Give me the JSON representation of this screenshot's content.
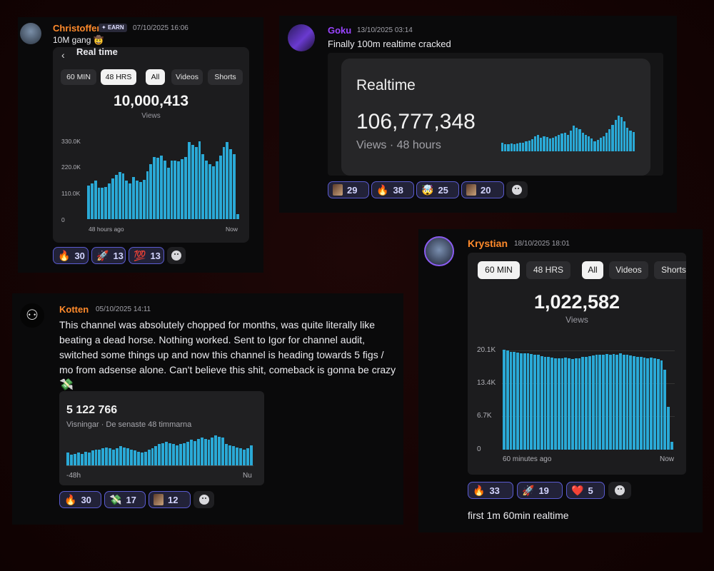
{
  "post1": {
    "username": "Christoffer",
    "badge": "EARN",
    "timestamp": "07/10/2025 16:06",
    "message": "10M gang",
    "screen_title": "Real time",
    "tabs": [
      "60 MIN",
      "48 HRS"
    ],
    "filters": [
      "All",
      "Videos",
      "Shorts"
    ],
    "views_value": "10,000,413",
    "views_label": "Views",
    "y_ticks": [
      "330.0K",
      "220.0K",
      "110.0K",
      "0"
    ],
    "x_start": "48 hours ago",
    "x_end": "Now",
    "reactions": [
      {
        "emoji": "🔥",
        "count": "30"
      },
      {
        "emoji": "🚀",
        "count": "13"
      },
      {
        "emoji": "💯",
        "count": "13"
      }
    ],
    "chart_data": {
      "type": "bar",
      "ylim": [
        0,
        330000
      ],
      "values": [
        140000,
        150000,
        160000,
        130000,
        130000,
        135000,
        150000,
        170000,
        185000,
        195000,
        190000,
        160000,
        150000,
        175000,
        160000,
        155000,
        165000,
        200000,
        230000,
        260000,
        255000,
        265000,
        245000,
        215000,
        245000,
        245000,
        240000,
        250000,
        260000,
        320000,
        310000,
        300000,
        325000,
        270000,
        245000,
        230000,
        220000,
        240000,
        265000,
        300000,
        320000,
        290000,
        270000,
        20000
      ]
    }
  },
  "post2": {
    "username": "Goku",
    "timestamp": "13/10/2025 03:14",
    "message": "Finally 100m realtime cracked",
    "screen_title": "Realtime",
    "views_value": "106,777,348",
    "views_label": "Views · 48 hours",
    "reactions": [
      {
        "emoji": "thumb",
        "count": "29"
      },
      {
        "emoji": "🔥",
        "count": "38"
      },
      {
        "emoji": "🤯",
        "count": "25"
      },
      {
        "emoji": "thumb",
        "count": "20"
      }
    ],
    "chart_data": {
      "type": "bar",
      "values": [
        12,
        10,
        10,
        11,
        10,
        11,
        12,
        12,
        13,
        14,
        16,
        20,
        22,
        18,
        20,
        19,
        17,
        18,
        20,
        22,
        24,
        25,
        22,
        28,
        35,
        32,
        30,
        25,
        22,
        20,
        17,
        13,
        15,
        18,
        20,
        25,
        30,
        36,
        42,
        48,
        46,
        40,
        32,
        28,
        26
      ]
    }
  },
  "post3": {
    "username": "Kotten",
    "timestamp": "05/10/2025 14:11",
    "message": "This channel was absolutely chopped for months, was quite literally like beating a dead horse. Nothing worked. Sent to Igor for channel audit, switched some things up and now this channel is heading towards 5 figs / mo from adsense alone. Can't believe this shit, comeback is gonna be crazy",
    "views_value": "5 122 766",
    "views_label": "Visningar · De senaste 48 timmarna",
    "x_start": "-48h",
    "x_end": "Nu",
    "reactions": [
      {
        "emoji": "🔥",
        "count": "30"
      },
      {
        "emoji": "💸",
        "count": "17"
      },
      {
        "emoji": "thumb",
        "count": "12"
      }
    ],
    "chart_data": {
      "type": "bar",
      "values": [
        12,
        10,
        11,
        12,
        11,
        13,
        12,
        14,
        15,
        15,
        16,
        17,
        16,
        15,
        16,
        18,
        17,
        16,
        15,
        14,
        13,
        12,
        13,
        15,
        16,
        18,
        20,
        21,
        22,
        21,
        20,
        19,
        20,
        21,
        22,
        24,
        23,
        25,
        26,
        25,
        24,
        26,
        28,
        27,
        26,
        20,
        19,
        18,
        17,
        16,
        15,
        16,
        19
      ]
    }
  },
  "post4": {
    "username": "Krystian",
    "timestamp": "18/10/2025 18:01",
    "tabs": [
      "60 MIN",
      "48 HRS"
    ],
    "filters": [
      "All",
      "Videos",
      "Shorts"
    ],
    "views_value": "1,022,582",
    "views_label": "Views",
    "y_ticks": [
      "20.1K",
      "13.4K",
      "6.7K",
      "0"
    ],
    "x_start": "60 minutes ago",
    "x_end": "Now",
    "reactions": [
      {
        "emoji": "🔥",
        "count": "33"
      },
      {
        "emoji": "🚀",
        "count": "19"
      },
      {
        "emoji": "❤️",
        "count": "5"
      }
    ],
    "caption": "first 1m 60min realtime",
    "chart_data": {
      "type": "bar",
      "ylim": [
        0,
        20100
      ],
      "values": [
        20000,
        19800,
        19600,
        19500,
        19400,
        19300,
        19300,
        19200,
        19100,
        19000,
        18900,
        18700,
        18600,
        18500,
        18400,
        18300,
        18200,
        18300,
        18400,
        18200,
        18100,
        18200,
        18300,
        18500,
        18600,
        18700,
        18800,
        18900,
        18900,
        19000,
        19100,
        19000,
        19100,
        19000,
        19200,
        19000,
        18900,
        18800,
        18700,
        18600,
        18500,
        18400,
        18300,
        18400,
        18200,
        18100,
        17800,
        16000,
        8500,
        1500
      ]
    }
  }
}
